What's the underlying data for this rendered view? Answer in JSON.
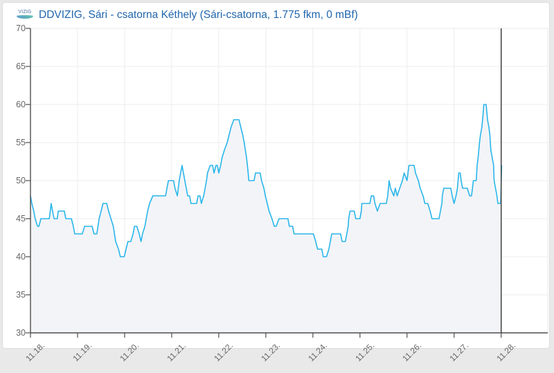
{
  "window": {
    "page_background": "#e9e9e9",
    "card_background": "#ffffff"
  },
  "header": {
    "logo_icon": "vizig-wave-logo-icon",
    "logo_text": "VIZIG",
    "title": "DDVIZIG, Sári - csatorna Kéthely (Sári-csatorna, 1.775 fkm, 0 mBf)",
    "title_color": "#2166ad"
  },
  "chart_data": {
    "type": "area",
    "title": "DDVIZIG, Sári - csatorna Kéthely (Sári-csatorna, 1.775 fkm, 0 mBf)",
    "xlabel": "",
    "ylabel": "",
    "ylim": [
      30,
      70
    ],
    "y_ticks": [
      70,
      65,
      60,
      55,
      50,
      45,
      40,
      35,
      30
    ],
    "x_tick_labels": [
      "11.18.",
      "11.19.",
      "11.20.",
      "11.21.",
      "11.22.",
      "11.23.",
      "11.24.",
      "11.25.",
      "11.26.",
      "11.27.",
      "11.28."
    ],
    "x_tick_days": [
      0,
      1,
      2,
      3,
      4,
      5,
      6,
      7,
      8,
      9,
      10
    ],
    "x_range_days": [
      0,
      10.99
    ],
    "grid": true,
    "legend": "none",
    "now_marker_day": 10,
    "colors": {
      "line": "#29b6ea",
      "fill": "#f3f4f8",
      "grid": "#ececec",
      "plot_border": "#e8e8e8",
      "axis": "#4d4d4d",
      "now_line": "#3f3f3f",
      "tick_label": "#666666"
    },
    "points": [
      [
        0.0,
        48
      ],
      [
        0.03,
        47
      ],
      [
        0.07,
        46
      ],
      [
        0.1,
        45
      ],
      [
        0.15,
        44
      ],
      [
        0.18,
        44
      ],
      [
        0.22,
        45
      ],
      [
        0.4,
        45
      ],
      [
        0.44,
        47
      ],
      [
        0.47,
        46
      ],
      [
        0.5,
        45
      ],
      [
        0.57,
        45
      ],
      [
        0.59,
        46
      ],
      [
        0.72,
        46
      ],
      [
        0.75,
        45
      ],
      [
        0.87,
        45
      ],
      [
        0.91,
        44
      ],
      [
        0.94,
        43
      ],
      [
        1.1,
        43
      ],
      [
        1.15,
        44
      ],
      [
        1.31,
        44
      ],
      [
        1.35,
        43
      ],
      [
        1.41,
        43
      ],
      [
        1.46,
        45
      ],
      [
        1.5,
        46
      ],
      [
        1.54,
        47
      ],
      [
        1.62,
        47
      ],
      [
        1.66,
        46
      ],
      [
        1.71,
        45
      ],
      [
        1.76,
        44
      ],
      [
        1.81,
        42
      ],
      [
        1.87,
        41
      ],
      [
        1.91,
        40
      ],
      [
        1.99,
        40
      ],
      [
        2.03,
        41
      ],
      [
        2.07,
        42
      ],
      [
        2.13,
        42
      ],
      [
        2.18,
        43
      ],
      [
        2.21,
        44
      ],
      [
        2.26,
        44
      ],
      [
        2.31,
        43
      ],
      [
        2.35,
        42
      ],
      [
        2.38,
        43
      ],
      [
        2.43,
        44
      ],
      [
        2.46,
        45
      ],
      [
        2.49,
        46
      ],
      [
        2.53,
        47
      ],
      [
        2.6,
        48
      ],
      [
        2.87,
        48
      ],
      [
        2.9,
        49
      ],
      [
        2.93,
        50
      ],
      [
        3.04,
        50
      ],
      [
        3.07,
        49
      ],
      [
        3.12,
        48
      ],
      [
        3.16,
        50
      ],
      [
        3.19,
        51
      ],
      [
        3.22,
        52
      ],
      [
        3.25,
        51
      ],
      [
        3.28,
        50
      ],
      [
        3.31,
        49
      ],
      [
        3.34,
        48
      ],
      [
        3.38,
        48
      ],
      [
        3.41,
        47
      ],
      [
        3.53,
        47
      ],
      [
        3.56,
        48
      ],
      [
        3.6,
        48
      ],
      [
        3.63,
        47
      ],
      [
        3.68,
        48
      ],
      [
        3.71,
        49
      ],
      [
        3.74,
        50
      ],
      [
        3.76,
        51
      ],
      [
        3.82,
        52
      ],
      [
        3.87,
        52
      ],
      [
        3.9,
        51
      ],
      [
        3.94,
        52
      ],
      [
        3.97,
        52
      ],
      [
        4.0,
        51
      ],
      [
        4.04,
        52
      ],
      [
        4.07,
        53
      ],
      [
        4.12,
        54
      ],
      [
        4.18,
        55
      ],
      [
        4.22,
        56
      ],
      [
        4.26,
        57
      ],
      [
        4.32,
        58
      ],
      [
        4.43,
        58
      ],
      [
        4.47,
        57
      ],
      [
        4.51,
        56
      ],
      [
        4.54,
        55
      ],
      [
        4.59,
        53
      ],
      [
        4.61,
        52
      ],
      [
        4.64,
        50
      ],
      [
        4.75,
        50
      ],
      [
        4.78,
        51
      ],
      [
        4.88,
        51
      ],
      [
        4.91,
        50
      ],
      [
        4.96,
        49
      ],
      [
        4.99,
        48
      ],
      [
        5.03,
        47
      ],
      [
        5.07,
        46
      ],
      [
        5.13,
        45
      ],
      [
        5.18,
        44
      ],
      [
        5.22,
        44
      ],
      [
        5.28,
        45
      ],
      [
        5.47,
        45
      ],
      [
        5.5,
        44
      ],
      [
        5.57,
        44
      ],
      [
        5.6,
        43
      ],
      [
        6.01,
        43
      ],
      [
        6.06,
        42
      ],
      [
        6.1,
        41
      ],
      [
        6.19,
        41
      ],
      [
        6.22,
        40
      ],
      [
        6.29,
        40
      ],
      [
        6.34,
        41
      ],
      [
        6.37,
        42
      ],
      [
        6.4,
        43
      ],
      [
        6.59,
        43
      ],
      [
        6.62,
        42
      ],
      [
        6.69,
        42
      ],
      [
        6.72,
        43
      ],
      [
        6.75,
        44
      ],
      [
        6.76,
        45
      ],
      [
        6.79,
        46
      ],
      [
        6.88,
        46
      ],
      [
        6.91,
        45
      ],
      [
        7.0,
        45
      ],
      [
        7.03,
        46
      ],
      [
        7.04,
        47
      ],
      [
        7.21,
        47
      ],
      [
        7.24,
        48
      ],
      [
        7.29,
        48
      ],
      [
        7.32,
        47
      ],
      [
        7.37,
        46
      ],
      [
        7.43,
        47
      ],
      [
        7.56,
        47
      ],
      [
        7.59,
        48
      ],
      [
        7.62,
        50
      ],
      [
        7.65,
        49
      ],
      [
        7.72,
        48
      ],
      [
        7.75,
        49
      ],
      [
        7.79,
        48
      ],
      [
        7.9,
        50
      ],
      [
        7.94,
        51
      ],
      [
        8.0,
        50
      ],
      [
        8.04,
        52
      ],
      [
        8.15,
        52
      ],
      [
        8.18,
        51
      ],
      [
        8.24,
        50
      ],
      [
        8.28,
        49
      ],
      [
        8.34,
        48
      ],
      [
        8.38,
        47
      ],
      [
        8.44,
        47
      ],
      [
        8.49,
        46
      ],
      [
        8.53,
        45
      ],
      [
        8.68,
        45
      ],
      [
        8.71,
        46
      ],
      [
        8.74,
        47
      ],
      [
        8.75,
        48
      ],
      [
        8.78,
        49
      ],
      [
        8.93,
        49
      ],
      [
        8.96,
        48
      ],
      [
        9.0,
        47
      ],
      [
        9.04,
        48
      ],
      [
        9.07,
        49
      ],
      [
        9.1,
        51
      ],
      [
        9.13,
        51
      ],
      [
        9.15,
        50
      ],
      [
        9.18,
        49
      ],
      [
        9.28,
        49
      ],
      [
        9.33,
        48
      ],
      [
        9.37,
        48
      ],
      [
        9.41,
        50
      ],
      [
        9.47,
        50
      ],
      [
        9.49,
        52
      ],
      [
        9.51,
        53
      ],
      [
        9.54,
        55
      ],
      [
        9.56,
        56
      ],
      [
        9.59,
        57
      ],
      [
        9.62,
        59
      ],
      [
        9.63,
        60
      ],
      [
        9.68,
        60
      ],
      [
        9.71,
        58
      ],
      [
        9.74,
        57
      ],
      [
        9.76,
        56
      ],
      [
        9.78,
        54
      ],
      [
        9.81,
        53
      ],
      [
        9.84,
        52
      ],
      [
        9.85,
        50
      ],
      [
        9.88,
        49
      ],
      [
        9.91,
        48
      ],
      [
        9.93,
        47
      ],
      [
        9.99,
        47
      ],
      [
        10.01,
        52
      ]
    ]
  }
}
